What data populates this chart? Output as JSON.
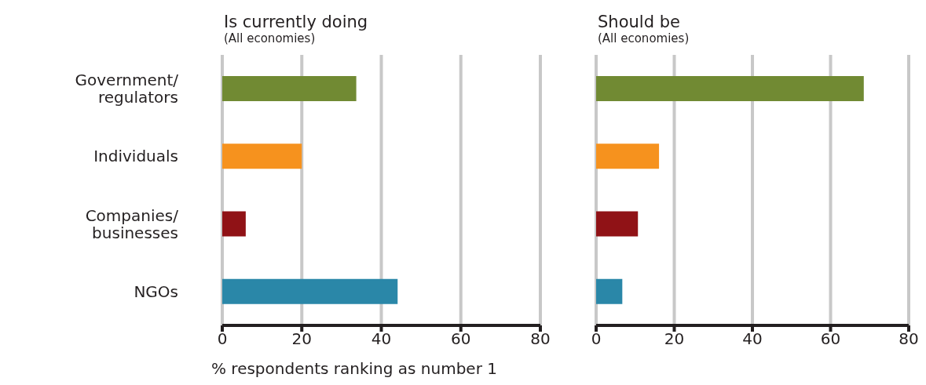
{
  "chart_data": [
    {
      "type": "bar",
      "orientation": "horizontal",
      "title": "Is currently doing",
      "subtitle": "(All economies)",
      "xlabel": "% respondents ranking as number 1",
      "categories": [
        "Government/ regulators",
        "Individuals",
        "Companies/ businesses",
        "NGOs"
      ],
      "values": [
        33.7,
        20,
        5.9,
        44.1
      ],
      "colors": [
        "#718a33",
        "#f6921e",
        "#901216",
        "#2a87a8"
      ],
      "xlim": [
        0,
        80
      ],
      "xticks": [
        0,
        20,
        40,
        60,
        80
      ],
      "grid": "x"
    },
    {
      "type": "bar",
      "orientation": "horizontal",
      "title": "Should be",
      "subtitle": "(All economies)",
      "categories": [
        null,
        null,
        null,
        null
      ],
      "values": [
        68.5,
        16.1,
        10.7,
        6.7
      ],
      "colors": [
        "#718a33",
        "#f6921e",
        "#901216",
        "#2a87a8"
      ],
      "xlim": [
        0,
        80
      ],
      "xticks": [
        0,
        20,
        40,
        60,
        80
      ],
      "grid": "x",
      "tick_labels": "x"
    }
  ]
}
